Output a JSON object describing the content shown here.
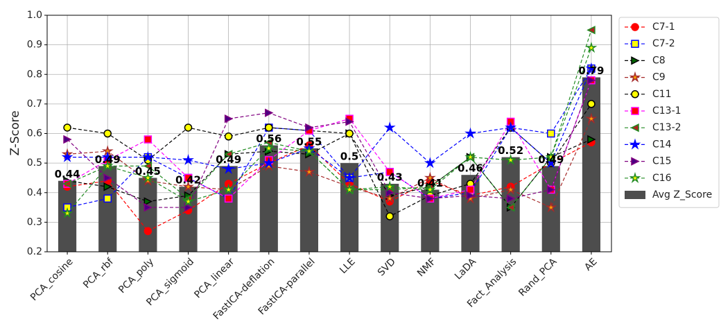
{
  "chart_data": {
    "type": "bar_line",
    "y_label": "Z-Score",
    "categories": [
      "PCA_cosine",
      "PCA_rbf",
      "PCA_poly",
      "PCA_sigmoid",
      "PCA_linear",
      "FastICA-deflation",
      "FastICA-parallel",
      "LLE",
      "SVD",
      "NMF",
      "LaDA",
      "Fact_Analysis",
      "Rand_PCA",
      "AE"
    ],
    "ylim": [
      0.2,
      1.0
    ],
    "yticks": [
      0.2,
      0.3,
      0.4,
      0.5,
      0.6,
      0.7,
      0.8,
      0.9,
      {
        "value": 1,
        "label": "1.0"
      }
    ],
    "grid": true,
    "legend": "outside right",
    "bars": {
      "name": "Avg Z_Score",
      "color": "#4d4d4d",
      "values": [
        0.44,
        0.49,
        0.45,
        0.42,
        0.49,
        0.56,
        0.55,
        0.5,
        0.43,
        0.41,
        0.46,
        0.52,
        0.49,
        0.79
      ]
    },
    "series": [
      {
        "name": "C7-1",
        "color": "#ff0000",
        "marker": "circle",
        "marker_fill": "#ff0000",
        "values": [
          0.42,
          0.44,
          0.27,
          0.34,
          0.43,
          0.5,
          0.56,
          0.43,
          0.37,
          0.44,
          0.39,
          0.42,
          0.5,
          0.57
        ]
      },
      {
        "name": "C7-2",
        "color": "#0000ff",
        "marker": "square",
        "marker_fill": "#ffff00",
        "values": [
          0.35,
          0.38,
          0.52,
          0.45,
          0.38,
          0.62,
          0.61,
          0.45,
          0.47,
          0.38,
          0.4,
          0.62,
          0.6,
          0.82
        ]
      },
      {
        "name": "C8",
        "color": "#000000",
        "marker": "triangle-right",
        "marker_fill": "#006400",
        "values": [
          0.44,
          0.42,
          0.37,
          0.39,
          0.53,
          0.54,
          0.53,
          0.6,
          0.39,
          0.42,
          0.52,
          0.35,
          0.52,
          0.58
        ]
      },
      {
        "name": "C9",
        "color": "#a52a2a",
        "marker": "star",
        "marker_fill": "#ffa500",
        "values": [
          0.53,
          0.54,
          0.44,
          0.42,
          0.41,
          0.49,
          0.47,
          0.42,
          0.38,
          0.45,
          0.38,
          0.41,
          0.35,
          0.65
        ]
      },
      {
        "name": "C11",
        "color": "#000000",
        "marker": "circle",
        "marker_fill": "#ffff00",
        "values": [
          0.62,
          0.6,
          0.51,
          0.62,
          0.59,
          0.62,
          0.61,
          0.6,
          0.32,
          0.39,
          0.43,
          0.62,
          0.5,
          0.7
        ]
      },
      {
        "name": "C13-1",
        "color": "#ff00ff",
        "marker": "square",
        "marker_fill": "#ff0000",
        "values": [
          0.43,
          0.51,
          0.58,
          0.45,
          0.38,
          0.51,
          0.61,
          0.65,
          0.47,
          0.38,
          0.41,
          0.64,
          0.41,
          0.78
        ]
      },
      {
        "name": "C13-2",
        "color": "#228b22",
        "marker": "triangle-left",
        "marker_fill": "#b22222",
        "values": [
          0.43,
          0.49,
          0.49,
          0.38,
          0.53,
          0.57,
          0.54,
          0.41,
          0.41,
          0.42,
          0.52,
          0.35,
          0.52,
          0.95
        ]
      },
      {
        "name": "C14",
        "color": "#0000ff",
        "marker": "star",
        "marker_fill": "#0000ff",
        "values": [
          0.52,
          0.52,
          0.52,
          0.51,
          0.48,
          0.5,
          0.55,
          0.45,
          0.62,
          0.5,
          0.6,
          0.62,
          0.5,
          0.82
        ]
      },
      {
        "name": "C15",
        "color": "#800080",
        "marker": "triangle-right",
        "marker_fill": "#4b0082",
        "values": [
          0.58,
          0.45,
          0.35,
          0.35,
          0.65,
          0.67,
          0.62,
          0.64,
          0.4,
          0.38,
          0.39,
          0.38,
          0.41,
          0.78
        ]
      },
      {
        "name": "C16",
        "color": "#228b22",
        "marker": "star",
        "marker_fill": "#ffff00",
        "values": [
          0.33,
          0.49,
          0.45,
          0.37,
          0.41,
          0.55,
          0.54,
          0.41,
          0.42,
          0.41,
          0.52,
          0.51,
          0.52,
          0.89
        ]
      }
    ]
  }
}
